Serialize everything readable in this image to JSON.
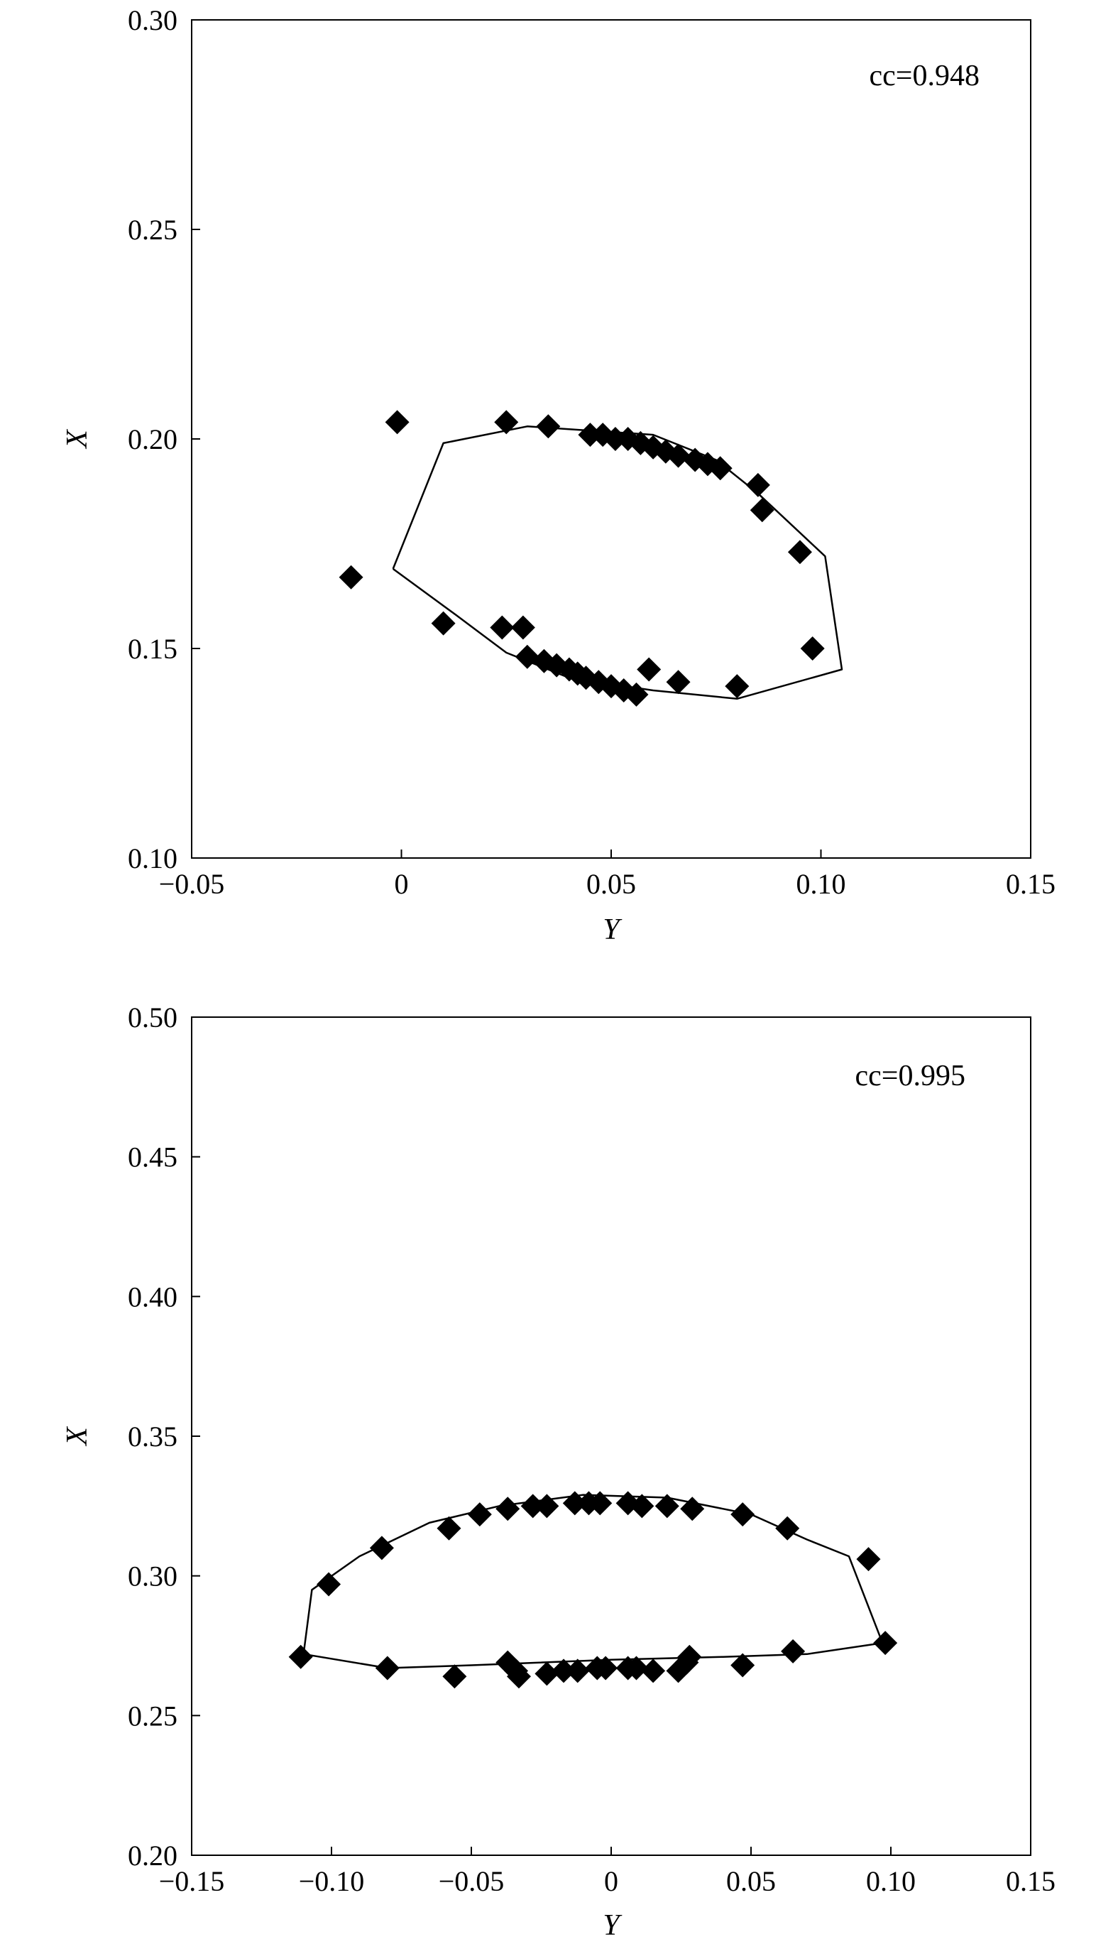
{
  "chart_data": [
    {
      "type": "scatter",
      "xlabel": "Y",
      "ylabel": "X",
      "xlim": [
        -0.05,
        0.15
      ],
      "ylim": [
        0.1,
        0.3
      ],
      "x_ticks": [
        "−0.05",
        "0",
        "0.05",
        "0.10",
        "0.15"
      ],
      "x_tick_values": [
        -0.05,
        0,
        0.05,
        0.1,
        0.15
      ],
      "y_ticks": [
        "0.10",
        "0.15",
        "0.20",
        "0.25",
        "0.30"
      ],
      "y_tick_values": [
        0.1,
        0.15,
        0.2,
        0.25,
        0.3
      ],
      "annotation": "cc=0.948",
      "grid": false,
      "points": [
        [
          -0.012,
          0.167
        ],
        [
          -0.001,
          0.204
        ],
        [
          0.01,
          0.156
        ],
        [
          0.024,
          0.155
        ],
        [
          0.029,
          0.155
        ],
        [
          0.03,
          0.148
        ],
        [
          0.034,
          0.147
        ],
        [
          0.037,
          0.146
        ],
        [
          0.04,
          0.145
        ],
        [
          0.042,
          0.144
        ],
        [
          0.044,
          0.143
        ],
        [
          0.047,
          0.142
        ],
        [
          0.05,
          0.141
        ],
        [
          0.053,
          0.14
        ],
        [
          0.056,
          0.139
        ],
        [
          0.059,
          0.145
        ],
        [
          0.066,
          0.142
        ],
        [
          0.08,
          0.141
        ],
        [
          0.098,
          0.15
        ],
        [
          0.095,
          0.173
        ],
        [
          0.086,
          0.183
        ],
        [
          0.085,
          0.189
        ],
        [
          0.076,
          0.193
        ],
        [
          0.073,
          0.194
        ],
        [
          0.07,
          0.195
        ],
        [
          0.066,
          0.196
        ],
        [
          0.063,
          0.197
        ],
        [
          0.06,
          0.198
        ],
        [
          0.057,
          0.199
        ],
        [
          0.054,
          0.2
        ],
        [
          0.051,
          0.2
        ],
        [
          0.048,
          0.201
        ],
        [
          0.045,
          0.201
        ],
        [
          0.035,
          0.203
        ],
        [
          0.025,
          0.204
        ]
      ],
      "curve": [
        [
          -0.002,
          0.169
        ],
        [
          0.01,
          0.199
        ],
        [
          0.03,
          0.203
        ],
        [
          0.06,
          0.201
        ],
        [
          0.075,
          0.195
        ],
        [
          0.085,
          0.187
        ],
        [
          0.101,
          0.172
        ],
        [
          0.105,
          0.145
        ],
        [
          0.08,
          0.138
        ],
        [
          0.06,
          0.14
        ],
        [
          0.04,
          0.143
        ],
        [
          0.025,
          0.149
        ],
        [
          0.013,
          0.158
        ],
        [
          -0.002,
          0.169
        ]
      ]
    },
    {
      "type": "scatter",
      "xlabel": "Y",
      "ylabel": "X",
      "xlim": [
        -0.15,
        0.15
      ],
      "ylim": [
        0.2,
        0.5
      ],
      "x_ticks": [
        "−0.15",
        "−0.10",
        "−0.05",
        "0",
        "0.05",
        "0.10",
        "0.15"
      ],
      "x_tick_values": [
        -0.15,
        -0.1,
        -0.05,
        0,
        0.05,
        0.1,
        0.15
      ],
      "y_ticks": [
        "0.20",
        "0.25",
        "0.30",
        "0.35",
        "0.40",
        "0.45",
        "0.50"
      ],
      "y_tick_values": [
        0.2,
        0.25,
        0.3,
        0.35,
        0.4,
        0.45,
        0.5
      ],
      "annotation": "cc=0.995",
      "grid": false,
      "points": [
        [
          -0.111,
          0.271
        ],
        [
          -0.101,
          0.297
        ],
        [
          -0.082,
          0.31
        ],
        [
          -0.08,
          0.267
        ],
        [
          -0.058,
          0.317
        ],
        [
          -0.056,
          0.264
        ],
        [
          -0.047,
          0.322
        ],
        [
          -0.037,
          0.324
        ],
        [
          -0.037,
          0.269
        ],
        [
          -0.034,
          0.266
        ],
        [
          -0.033,
          0.264
        ],
        [
          -0.028,
          0.325
        ],
        [
          -0.023,
          0.325
        ],
        [
          -0.023,
          0.265
        ],
        [
          -0.017,
          0.266
        ],
        [
          -0.013,
          0.326
        ],
        [
          -0.012,
          0.266
        ],
        [
          -0.008,
          0.326
        ],
        [
          -0.004,
          0.326
        ],
        [
          -0.005,
          0.267
        ],
        [
          -0.002,
          0.267
        ],
        [
          0.006,
          0.326
        ],
        [
          0.006,
          0.267
        ],
        [
          0.009,
          0.267
        ],
        [
          0.011,
          0.325
        ],
        [
          0.015,
          0.266
        ],
        [
          0.02,
          0.325
        ],
        [
          0.024,
          0.266
        ],
        [
          0.027,
          0.269
        ],
        [
          0.028,
          0.271
        ],
        [
          0.029,
          0.324
        ],
        [
          0.047,
          0.322
        ],
        [
          0.047,
          0.268
        ],
        [
          0.063,
          0.317
        ],
        [
          0.065,
          0.273
        ],
        [
          0.092,
          0.306
        ],
        [
          0.098,
          0.276
        ]
      ],
      "curve": [
        [
          -0.11,
          0.272
        ],
        [
          -0.107,
          0.295
        ],
        [
          -0.09,
          0.307
        ],
        [
          -0.065,
          0.319
        ],
        [
          -0.04,
          0.325
        ],
        [
          -0.01,
          0.329
        ],
        [
          0.02,
          0.328
        ],
        [
          0.05,
          0.322
        ],
        [
          0.07,
          0.313
        ],
        [
          0.085,
          0.307
        ],
        [
          0.097,
          0.276
        ],
        [
          0.07,
          0.272
        ],
        [
          0.04,
          0.271
        ],
        [
          0.0,
          0.27
        ],
        [
          -0.05,
          0.268
        ],
        [
          -0.08,
          0.267
        ],
        [
          -0.11,
          0.272
        ]
      ]
    }
  ]
}
